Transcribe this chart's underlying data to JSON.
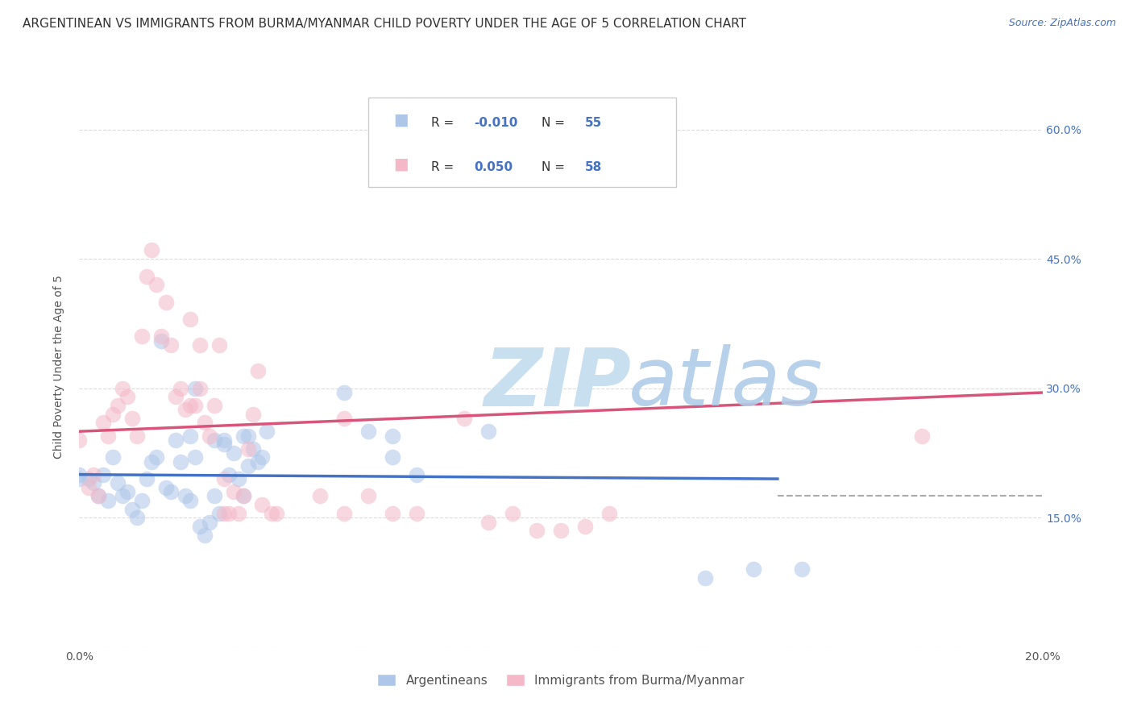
{
  "title": "ARGENTINEAN VS IMMIGRANTS FROM BURMA/MYANMAR CHILD POVERTY UNDER THE AGE OF 5 CORRELATION CHART",
  "source": "Source: ZipAtlas.com",
  "ylabel": "Child Poverty Under the Age of 5",
  "xlim": [
    0.0,
    0.2
  ],
  "ylim": [
    0.0,
    0.65
  ],
  "xticks": [
    0.0,
    0.05,
    0.1,
    0.15,
    0.2
  ],
  "xticklabels": [
    "0.0%",
    "",
    "",
    "",
    "20.0%"
  ],
  "yticks": [
    0.0,
    0.15,
    0.3,
    0.45,
    0.6
  ],
  "yticklabels": [
    "",
    "15.0%",
    "30.0%",
    "45.0%",
    "60.0%"
  ],
  "blue_color": "#aec6e8",
  "pink_color": "#f4b8c8",
  "blue_line_color": "#4472c4",
  "pink_line_color": "#d9547a",
  "watermark_zip": "ZIP",
  "watermark_atlas": "atlas",
  "dashed_line_y": 0.175,
  "blue_scatter": [
    [
      0.0,
      0.2
    ],
    [
      0.0,
      0.195
    ],
    [
      0.002,
      0.195
    ],
    [
      0.003,
      0.19
    ],
    [
      0.004,
      0.175
    ],
    [
      0.005,
      0.2
    ],
    [
      0.006,
      0.17
    ],
    [
      0.007,
      0.22
    ],
    [
      0.008,
      0.19
    ],
    [
      0.009,
      0.175
    ],
    [
      0.01,
      0.18
    ],
    [
      0.011,
      0.16
    ],
    [
      0.012,
      0.15
    ],
    [
      0.013,
      0.17
    ],
    [
      0.014,
      0.195
    ],
    [
      0.015,
      0.215
    ],
    [
      0.016,
      0.22
    ],
    [
      0.017,
      0.355
    ],
    [
      0.018,
      0.185
    ],
    [
      0.019,
      0.18
    ],
    [
      0.02,
      0.24
    ],
    [
      0.021,
      0.215
    ],
    [
      0.022,
      0.175
    ],
    [
      0.023,
      0.17
    ],
    [
      0.023,
      0.245
    ],
    [
      0.024,
      0.22
    ],
    [
      0.024,
      0.3
    ],
    [
      0.025,
      0.14
    ],
    [
      0.026,
      0.13
    ],
    [
      0.027,
      0.145
    ],
    [
      0.028,
      0.24
    ],
    [
      0.028,
      0.175
    ],
    [
      0.029,
      0.155
    ],
    [
      0.03,
      0.235
    ],
    [
      0.03,
      0.24
    ],
    [
      0.031,
      0.2
    ],
    [
      0.032,
      0.225
    ],
    [
      0.033,
      0.195
    ],
    [
      0.034,
      0.245
    ],
    [
      0.034,
      0.175
    ],
    [
      0.035,
      0.21
    ],
    [
      0.035,
      0.245
    ],
    [
      0.036,
      0.23
    ],
    [
      0.037,
      0.215
    ],
    [
      0.038,
      0.22
    ],
    [
      0.039,
      0.25
    ],
    [
      0.055,
      0.295
    ],
    [
      0.06,
      0.25
    ],
    [
      0.065,
      0.22
    ],
    [
      0.065,
      0.245
    ],
    [
      0.07,
      0.2
    ],
    [
      0.085,
      0.25
    ],
    [
      0.13,
      0.08
    ],
    [
      0.14,
      0.09
    ],
    [
      0.15,
      0.09
    ]
  ],
  "pink_scatter": [
    [
      0.0,
      0.24
    ],
    [
      0.002,
      0.185
    ],
    [
      0.003,
      0.2
    ],
    [
      0.004,
      0.175
    ],
    [
      0.005,
      0.26
    ],
    [
      0.006,
      0.245
    ],
    [
      0.007,
      0.27
    ],
    [
      0.008,
      0.28
    ],
    [
      0.009,
      0.3
    ],
    [
      0.01,
      0.29
    ],
    [
      0.011,
      0.265
    ],
    [
      0.012,
      0.245
    ],
    [
      0.013,
      0.36
    ],
    [
      0.014,
      0.43
    ],
    [
      0.015,
      0.46
    ],
    [
      0.016,
      0.42
    ],
    [
      0.017,
      0.36
    ],
    [
      0.018,
      0.4
    ],
    [
      0.019,
      0.35
    ],
    [
      0.02,
      0.29
    ],
    [
      0.021,
      0.3
    ],
    [
      0.022,
      0.275
    ],
    [
      0.023,
      0.28
    ],
    [
      0.023,
      0.38
    ],
    [
      0.024,
      0.28
    ],
    [
      0.025,
      0.3
    ],
    [
      0.025,
      0.35
    ],
    [
      0.026,
      0.26
    ],
    [
      0.027,
      0.245
    ],
    [
      0.028,
      0.28
    ],
    [
      0.029,
      0.35
    ],
    [
      0.03,
      0.195
    ],
    [
      0.03,
      0.155
    ],
    [
      0.031,
      0.155
    ],
    [
      0.032,
      0.18
    ],
    [
      0.033,
      0.155
    ],
    [
      0.034,
      0.175
    ],
    [
      0.035,
      0.23
    ],
    [
      0.036,
      0.27
    ],
    [
      0.037,
      0.32
    ],
    [
      0.038,
      0.165
    ],
    [
      0.04,
      0.155
    ],
    [
      0.041,
      0.155
    ],
    [
      0.05,
      0.175
    ],
    [
      0.055,
      0.265
    ],
    [
      0.055,
      0.155
    ],
    [
      0.06,
      0.175
    ],
    [
      0.065,
      0.155
    ],
    [
      0.07,
      0.155
    ],
    [
      0.08,
      0.265
    ],
    [
      0.085,
      0.145
    ],
    [
      0.09,
      0.155
    ],
    [
      0.095,
      0.135
    ],
    [
      0.1,
      0.135
    ],
    [
      0.105,
      0.14
    ],
    [
      0.11,
      0.155
    ],
    [
      0.175,
      0.245
    ]
  ],
  "blue_line": [
    [
      0.0,
      0.2
    ],
    [
      0.145,
      0.195
    ]
  ],
  "pink_line": [
    [
      0.0,
      0.25
    ],
    [
      0.2,
      0.295
    ]
  ],
  "dashed_line": [
    [
      0.145,
      0.175
    ],
    [
      0.2,
      0.175
    ]
  ],
  "background_color": "#ffffff",
  "grid_color": "#cccccc",
  "right_ytick_color": "#4472c4",
  "title_fontsize": 11,
  "source_fontsize": 9,
  "axis_label_fontsize": 10,
  "tick_fontsize": 10,
  "scatter_size": 200,
  "scatter_alpha": 0.55
}
